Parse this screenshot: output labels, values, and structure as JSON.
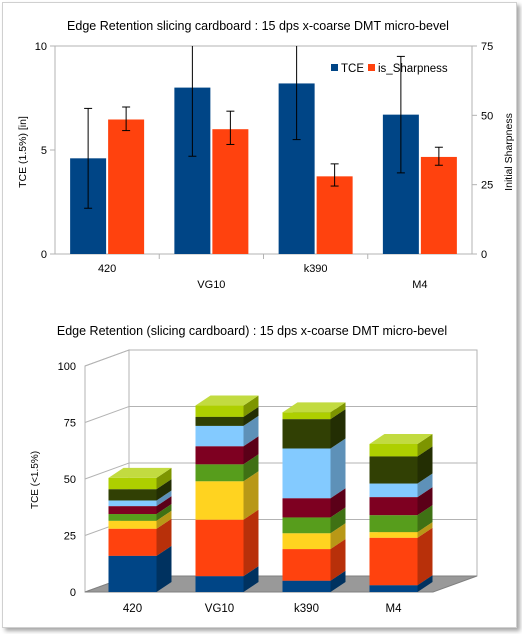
{
  "chart_data": [
    {
      "type": "bar",
      "title": "Edge Retention slicing  cardboard : 15 dps x-coarse DMT micro-bevel",
      "categories": [
        "420",
        "VG10",
        "k390",
        "M4"
      ],
      "ylabel_left": "TCE (1.5%) [in]",
      "ylabel_right": "Initial Sharpness",
      "ylim_left": [
        0,
        10
      ],
      "ylim_right": [
        0,
        75
      ],
      "yticks_left": [
        "0",
        "5",
        "10"
      ],
      "yticks_right": [
        "0",
        "25",
        "50",
        "75"
      ],
      "legend_position": "top-right",
      "grid": false,
      "series": [
        {
          "name": "TCE",
          "color": "#004586",
          "axis": "left",
          "values": [
            4.6,
            8.0,
            8.2,
            6.7
          ],
          "error_low": [
            2.2,
            4.7,
            5.5,
            3.9
          ],
          "error_high": [
            7.0,
            10.0,
            10.0,
            9.5
          ]
        },
        {
          "name": "is_Sharpness",
          "color": "#ff420e",
          "axis": "right",
          "values": [
            48.5,
            45.0,
            28.0,
            35.0
          ],
          "error_low": [
            44.5,
            39.5,
            24.5,
            32.0
          ],
          "error_high": [
            53.0,
            51.5,
            32.5,
            38.5
          ]
        }
      ]
    },
    {
      "type": "bar",
      "stacked": true,
      "three_d": true,
      "title": "Edge Retention (slicing cardboard) : 15 dps x-coarse  DMT micro-bevel",
      "categories": [
        "420",
        "VG10",
        "k390",
        "M4"
      ],
      "ylabel": "TCE (<1.5%)",
      "ylim": [
        0,
        100
      ],
      "yticks": [
        "0",
        "25",
        "50",
        "75",
        "100"
      ],
      "grid": true,
      "segment_colors": [
        "#004586",
        "#ff420e",
        "#ffd320",
        "#579d1c",
        "#7e0021",
        "#83caff",
        "#314004",
        "#aecf00"
      ],
      "stacks": [
        [
          16,
          12,
          3.5,
          3,
          3.5,
          2.5,
          5,
          5
        ],
        [
          7,
          25,
          17,
          7.5,
          8,
          9,
          4,
          5
        ],
        [
          5,
          14,
          7,
          7,
          8.5,
          22,
          13,
          3
        ],
        [
          3,
          21,
          2.5,
          7.5,
          8,
          6,
          12,
          5.5
        ]
      ]
    }
  ]
}
